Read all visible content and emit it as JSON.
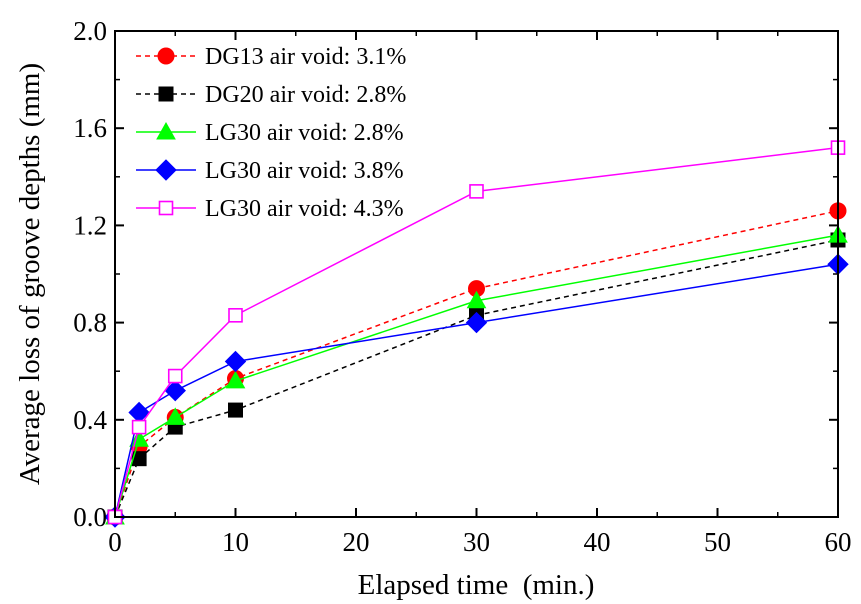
{
  "chart_data": {
    "type": "line",
    "xlabel": "Elapsed time  (min.)",
    "ylabel": "Average loss of groove depths (mm)",
    "xlim": [
      0,
      60
    ],
    "ylim": [
      0.0,
      2.0
    ],
    "x_ticks": [
      0,
      10,
      20,
      30,
      40,
      50,
      60
    ],
    "x_tick_labels": [
      "0",
      "10",
      "20",
      "30",
      "40",
      "50",
      "60"
    ],
    "y_ticks": [
      0.0,
      0.4,
      0.8,
      1.2,
      1.6,
      2.0
    ],
    "y_tick_labels": [
      "0.0",
      "0.4",
      "0.8",
      "1.2",
      "1.6",
      "2.0"
    ],
    "grid": false,
    "legend_position": "top-left",
    "x": [
      0,
      2,
      5,
      10,
      30,
      60
    ],
    "series": [
      {
        "name": "DG13 air void: 3.1%",
        "color": "#ff0000",
        "line_style": "dashed",
        "marker": "circle",
        "marker_fill": "filled",
        "values": [
          0.0,
          0.29,
          0.41,
          0.57,
          0.94,
          1.26
        ]
      },
      {
        "name": "DG20 air void: 2.8%",
        "color": "#000000",
        "line_style": "dashed",
        "marker": "square",
        "marker_fill": "filled",
        "values": [
          0.0,
          0.24,
          0.37,
          0.44,
          0.83,
          1.14
        ]
      },
      {
        "name": "LG30 air void: 2.8%",
        "color": "#00ff00",
        "line_style": "solid",
        "marker": "triangle",
        "marker_fill": "filled",
        "values": [
          0.0,
          0.32,
          0.41,
          0.56,
          0.89,
          1.16
        ]
      },
      {
        "name": "LG30 air void: 3.8%",
        "color": "#0000ff",
        "line_style": "solid",
        "marker": "diamond",
        "marker_fill": "filled",
        "values": [
          0.0,
          0.43,
          0.52,
          0.64,
          0.8,
          1.04
        ]
      },
      {
        "name": "LG30 air void: 4.3%",
        "color": "#ff00ff",
        "line_style": "solid",
        "marker": "square",
        "marker_fill": "hollow",
        "values": [
          0.0,
          0.37,
          0.58,
          0.83,
          1.34,
          1.52
        ]
      }
    ]
  }
}
